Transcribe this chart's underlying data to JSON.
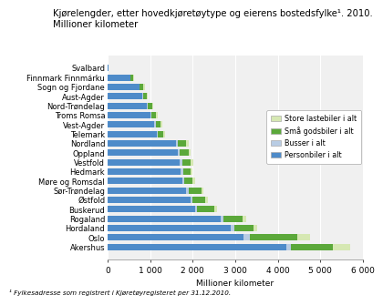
{
  "title": "Kjørelengder, etter hovedkjøretøytype og eierens bostedsfylke¹. 2010.\nMillioner kilometer",
  "footnote": "¹ Fylkesadresse som registrert i Kjøretøyregisteret per 31.12.2010.",
  "xlabel": "Millioner kilometer",
  "categories": [
    "Svalbard",
    "Finnmark Finnmárku",
    "Sogn og Fjordane",
    "Aust-Agder",
    "Nord-Trøndelag",
    "Troms Romsa",
    "Vest-Agder",
    "Telemark",
    "Nordland",
    "Oppland",
    "Vestfold",
    "Hedmark",
    "Møre og Romsdal",
    "Sør-Trøndelag",
    "Østfold",
    "Buskerud",
    "Rogaland",
    "Hordaland",
    "Oslo",
    "Akershus"
  ],
  "series": {
    "Personbiler i alt": [
      20,
      530,
      740,
      810,
      920,
      1000,
      1100,
      1150,
      1600,
      1650,
      1700,
      1720,
      1750,
      1850,
      1950,
      2050,
      2650,
      2900,
      3200,
      4200
    ],
    "Busser i alt": [
      0,
      10,
      20,
      20,
      30,
      30,
      30,
      30,
      50,
      50,
      50,
      50,
      50,
      50,
      50,
      50,
      80,
      80,
      150,
      100
    ],
    "Små godsbiler i alt": [
      5,
      60,
      80,
      90,
      100,
      110,
      120,
      130,
      200,
      200,
      210,
      180,
      200,
      300,
      300,
      400,
      450,
      450,
      1100,
      1000
    ],
    "Store lastebiler i alt": [
      2,
      20,
      30,
      30,
      30,
      30,
      30,
      30,
      50,
      50,
      50,
      40,
      50,
      60,
      60,
      70,
      80,
      80,
      300,
      400
    ]
  },
  "colors": {
    "Personbiler i alt": "#4E8BC9",
    "Busser i alt": "#B8CCE4",
    "Små godsbiler i alt": "#5BA83A",
    "Store lastebiler i alt": "#D6E8B3"
  },
  "xlim": [
    0,
    6000
  ],
  "xticks": [
    0,
    1000,
    2000,
    3000,
    4000,
    5000,
    6000
  ],
  "background_color": "#F0F0F0"
}
